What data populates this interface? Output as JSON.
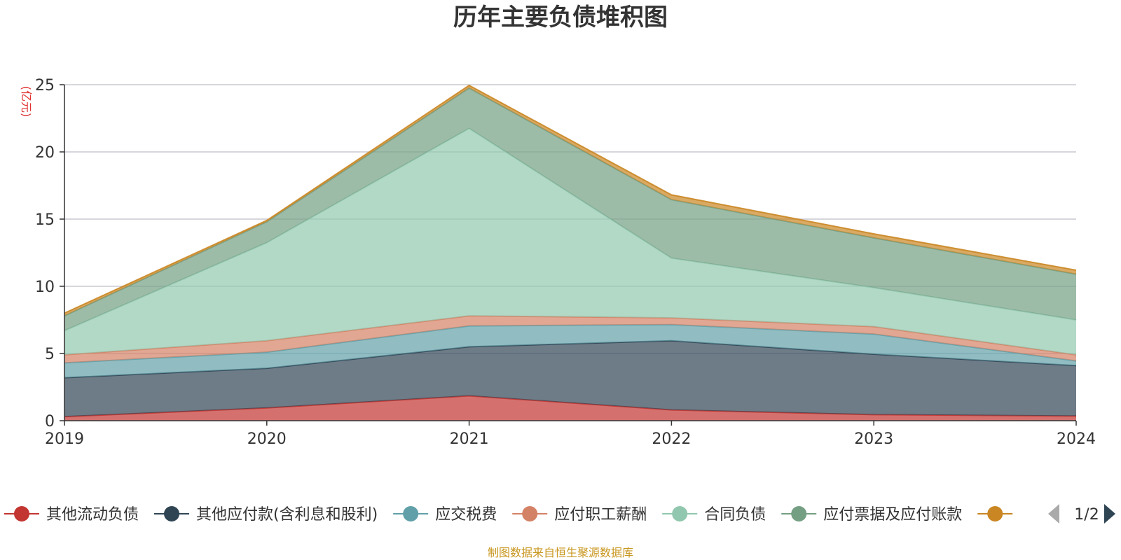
{
  "chart_data": {
    "type": "area",
    "stacked": true,
    "title": "历年主要负债堆积图",
    "y_unit": "(亿元)",
    "x": [
      "2019",
      "2020",
      "2021",
      "2022",
      "2023",
      "2024"
    ],
    "ylim": [
      0,
      25
    ],
    "yticks": [
      "0",
      "5",
      "10",
      "15",
      "20",
      "25"
    ],
    "grid": true,
    "legend_position": "bottom",
    "series": [
      {
        "name": "其他流动负债",
        "color": "#c23531",
        "values": [
          0.3,
          0.95,
          1.85,
          0.8,
          0.45,
          0.35
        ]
      },
      {
        "name": "其他应付款(含利息和股利)",
        "color": "#2f4554",
        "values": [
          2.9,
          2.95,
          3.65,
          5.15,
          4.5,
          3.75
        ]
      },
      {
        "name": "应交税费",
        "color": "#61a0a8",
        "values": [
          1.1,
          1.2,
          1.55,
          1.2,
          1.5,
          0.35
        ]
      },
      {
        "name": "应付职工薪酬",
        "color": "#d48265",
        "values": [
          0.6,
          0.85,
          0.75,
          0.5,
          0.55,
          0.45
        ]
      },
      {
        "name": "合同负债",
        "color": "#91c7ae",
        "values": [
          1.8,
          7.3,
          13.95,
          4.45,
          2.9,
          2.6
        ]
      },
      {
        "name": "应付票据及应付账款",
        "color": "#749f83",
        "values": [
          1.1,
          1.55,
          3.0,
          4.35,
          3.7,
          3.4
        ]
      },
      {
        "name": "",
        "color": "#ca8622",
        "values": [
          0.2,
          0.1,
          0.2,
          0.35,
          0.3,
          0.3
        ]
      }
    ],
    "legend_page": "1/2"
  },
  "source_note": "制图数据来自恒生聚源数据库"
}
